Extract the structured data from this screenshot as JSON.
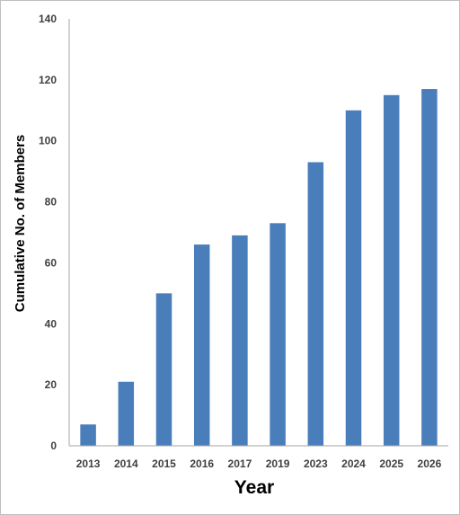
{
  "chart_data": {
    "type": "bar",
    "categories": [
      "2013",
      "2014",
      "2015",
      "2016",
      "2017",
      "2019",
      "2023",
      "2024",
      "2025",
      "2026"
    ],
    "values": [
      7,
      21,
      50,
      66,
      69,
      73,
      93,
      110,
      115,
      117
    ],
    "xlabel": "Year",
    "ylabel": "Cumulative No. of Members",
    "ylim": [
      0,
      140
    ],
    "yticks": [
      0,
      20,
      40,
      60,
      80,
      100,
      120,
      140
    ],
    "grid": false,
    "legend": "none",
    "bar_color": "#4a7ebb",
    "axis_color": "#a6a6a6"
  }
}
